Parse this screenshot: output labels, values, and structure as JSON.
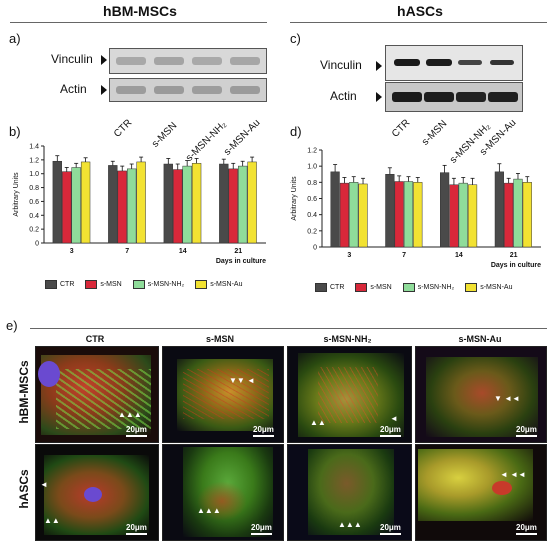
{
  "headers": {
    "left": "hBM-MSCs",
    "right": "hASCs"
  },
  "panel_letters": {
    "a": "a)",
    "b": "b)",
    "c": "c)",
    "d": "d)",
    "e": "e)"
  },
  "blots": {
    "labels": [
      "Vinculin",
      "Actin"
    ],
    "lanes": [
      "CTR",
      "s-MSN",
      "s-MSN-NH₂",
      "s-MSN-Au"
    ]
  },
  "colors": {
    "CTR": "#4a4a4a",
    "s-MSN": "#d8283a",
    "s-MSN-NH2": "#8fdc9a",
    "s-MSN-Au": "#f2e232"
  },
  "chart_data": [
    {
      "type": "bar",
      "ylabel": "Arbitrary Units",
      "xlabel": "Days in culture",
      "categories": [
        "3",
        "7",
        "14",
        "21"
      ],
      "ylim": [
        0,
        1.4
      ],
      "yticks": [
        "0",
        "0.2",
        "0.4",
        "0.6",
        "0.8",
        "1.0",
        "1.2",
        "1.4"
      ],
      "series": [
        {
          "name": "CTR",
          "values": [
            1.18,
            1.12,
            1.14,
            1.14
          ],
          "errors": [
            0.08,
            0.06,
            0.08,
            0.07
          ]
        },
        {
          "name": "s-MSN",
          "values": [
            1.03,
            1.04,
            1.06,
            1.07
          ],
          "errors": [
            0.06,
            0.07,
            0.08,
            0.08
          ]
        },
        {
          "name": "s-MSN-NH₂",
          "values": [
            1.09,
            1.07,
            1.11,
            1.11
          ],
          "errors": [
            0.06,
            0.07,
            0.08,
            0.07
          ]
        },
        {
          "name": "s-MSN-Au",
          "values": [
            1.17,
            1.17,
            1.15,
            1.17
          ],
          "errors": [
            0.06,
            0.07,
            0.07,
            0.07
          ]
        }
      ],
      "legend": "bottom"
    },
    {
      "type": "bar",
      "ylabel": "Arbitrary Units",
      "xlabel": "Days in culture",
      "categories": [
        "3",
        "7",
        "14",
        "21"
      ],
      "ylim": [
        0,
        1.2
      ],
      "yticks": [
        "0",
        "0.2",
        "0.4",
        "0.6",
        "0.8",
        "1.0",
        "1.2"
      ],
      "series": [
        {
          "name": "CTR",
          "values": [
            0.93,
            0.9,
            0.92,
            0.93
          ],
          "errors": [
            0.09,
            0.08,
            0.09,
            0.1
          ]
        },
        {
          "name": "s-MSN",
          "values": [
            0.79,
            0.81,
            0.77,
            0.79
          ],
          "errors": [
            0.07,
            0.07,
            0.08,
            0.06
          ]
        },
        {
          "name": "s-MSN-NH₂",
          "values": [
            0.8,
            0.81,
            0.79,
            0.84
          ],
          "errors": [
            0.07,
            0.06,
            0.07,
            0.07
          ]
        },
        {
          "name": "s-MSN-Au",
          "values": [
            0.78,
            0.8,
            0.77,
            0.8
          ],
          "errors": [
            0.07,
            0.06,
            0.08,
            0.07
          ]
        }
      ],
      "legend": "bottom"
    }
  ],
  "microscopy": {
    "columns": [
      "CTR",
      "s-MSN",
      "s-MSN-NH₂",
      "s-MSN-Au"
    ],
    "rows": [
      "hBM-MSCs",
      "hASCs"
    ],
    "scale_bar": "20μm"
  }
}
